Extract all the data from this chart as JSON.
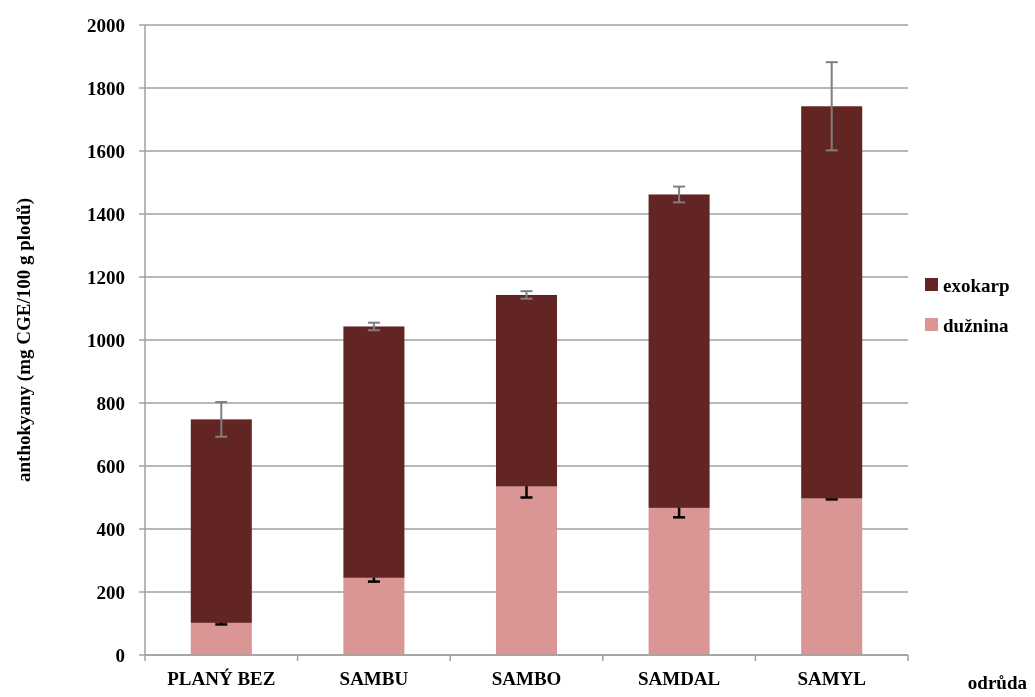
{
  "chart_data": {
    "type": "bar",
    "stacked": true,
    "xlabel": "odrůda",
    "ylabel": "anthokyany (mg CGE/100 g plodů)",
    "categories": [
      "PLANÝ BEZ",
      "SAMBU",
      "SAMBO",
      "SAMDAL",
      "SAMYL"
    ],
    "series": [
      {
        "name": "dužnina",
        "color": "#d99694",
        "values": [
          102,
          245,
          535,
          467,
          497
        ],
        "errors": [
          5,
          12,
          35,
          30,
          3
        ]
      },
      {
        "name": "exokarp",
        "color": "#632523",
        "values": [
          646,
          798,
          608,
          995,
          1245
        ],
        "errors": [
          55,
          12,
          12,
          25,
          140
        ]
      }
    ],
    "ylim": [
      0,
      2000
    ],
    "yticks": [
      0,
      200,
      400,
      600,
      800,
      1000,
      1200,
      1400,
      1600,
      1800,
      2000
    ],
    "grid": "y",
    "legend": "right"
  }
}
